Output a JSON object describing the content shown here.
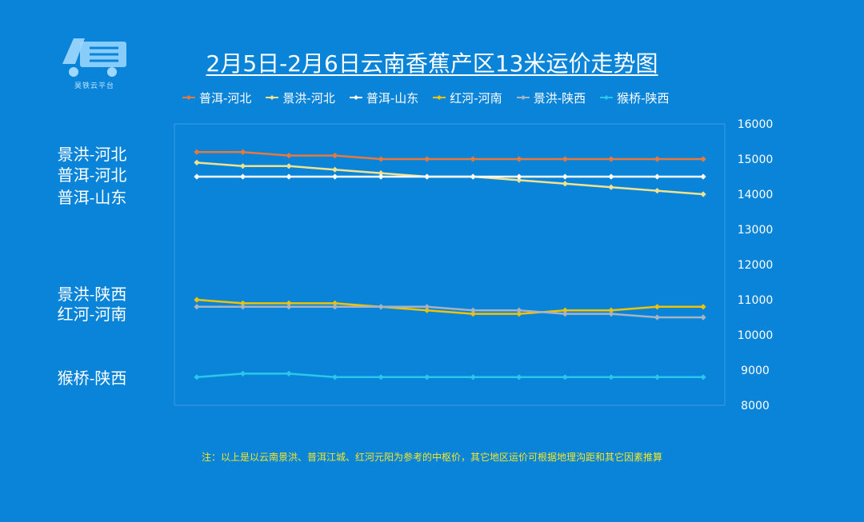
{
  "logo": {
    "text": "昊铁云平台",
    "icon": "truck-logo-icon"
  },
  "side_labels": [
    "景洪-河北",
    "普洱-河北",
    "普洱-山东",
    "景洪-陕西",
    "红河-河南",
    "猴桥-陕西"
  ],
  "note": "注：以上是以云南景洪、普洱江城、红河元阳为参考的中枢价，其它地区运价可根据地理沟距和其它因素推算",
  "chart_data": {
    "type": "line",
    "title": "2月5日-2月6日云南香蕉产区13米运价走势图",
    "xlabel": "",
    "ylabel": "",
    "ylim": [
      8000,
      16000
    ],
    "y_ticks": [
      8000,
      9000,
      10000,
      11000,
      12000,
      13000,
      14000,
      15000,
      16000
    ],
    "y_axis_side": "right",
    "grid": false,
    "legend_position": "top",
    "x": [
      1,
      2,
      3,
      4,
      5,
      6,
      7,
      8,
      9,
      10,
      11,
      12
    ],
    "series": [
      {
        "name": "普洱-河北",
        "color": "#e8793a",
        "values": [
          15200,
          15200,
          15100,
          15100,
          15000,
          15000,
          15000,
          15000,
          15000,
          15000,
          15000,
          15000
        ]
      },
      {
        "name": "景洪-河北",
        "color": "#f1e28f",
        "values": [
          14900,
          14800,
          14800,
          14700,
          14600,
          14500,
          14500,
          14400,
          14300,
          14200,
          14100,
          14000
        ]
      },
      {
        "name": "普洱-山东",
        "color": "#ffffff",
        "values": [
          14500,
          14500,
          14500,
          14500,
          14500,
          14500,
          14500,
          14500,
          14500,
          14500,
          14500,
          14500
        ]
      },
      {
        "name": "红河-河南",
        "color": "#f2c200",
        "values": [
          11000,
          10900,
          10900,
          10900,
          10800,
          10700,
          10600,
          10600,
          10700,
          10700,
          10800,
          10800
        ]
      },
      {
        "name": "景洪-陕西",
        "color": "#a6b3c2",
        "values": [
          10800,
          10800,
          10800,
          10800,
          10800,
          10800,
          10700,
          10700,
          10600,
          10600,
          10500,
          10500
        ]
      },
      {
        "name": "猴桥-陕西",
        "color": "#29c7ec",
        "values": [
          8800,
          8900,
          8900,
          8800,
          8800,
          8800,
          8800,
          8800,
          8800,
          8800,
          8800,
          8800
        ]
      }
    ]
  }
}
